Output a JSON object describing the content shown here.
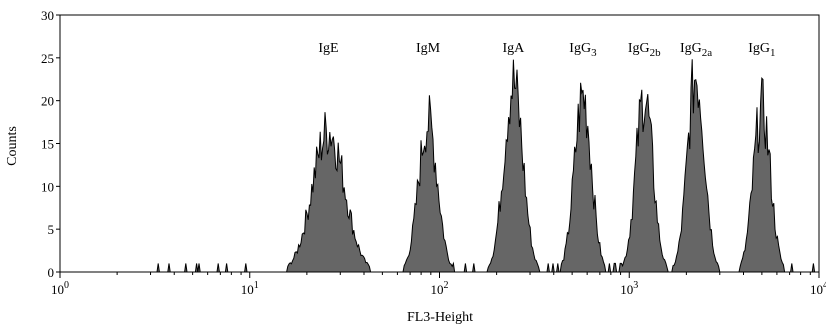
{
  "chart_data": {
    "type": "area",
    "title": "",
    "xlabel": "FL3-Height",
    "ylabel": "Counts",
    "x_scale": "log",
    "xlim": [
      1,
      10000
    ],
    "ylim": [
      0,
      30
    ],
    "x_ticks": [
      {
        "value": 1,
        "base": "10",
        "exp": "0"
      },
      {
        "value": 10,
        "base": "10",
        "exp": "1"
      },
      {
        "value": 100,
        "base": "10",
        "exp": "2"
      },
      {
        "value": 1000,
        "base": "10",
        "exp": "3"
      },
      {
        "value": 10000,
        "base": "10",
        "exp": "4"
      }
    ],
    "y_ticks": [
      0,
      5,
      10,
      15,
      20,
      25,
      30
    ],
    "grid": false,
    "fill_color": "#666666",
    "peaks": [
      {
        "label": {
          "main": "IgE",
          "sub": ""
        },
        "center": 26,
        "height": 16.5,
        "width": 0.085
      },
      {
        "label": {
          "main": "IgM",
          "sub": ""
        },
        "center": 87,
        "height": 17.5,
        "width": 0.05
      },
      {
        "label": {
          "main": "IgA",
          "sub": ""
        },
        "center": 245,
        "height": 22,
        "width": 0.05
      },
      {
        "label": {
          "main": "IgG",
          "sub": "3"
        },
        "center": 570,
        "height": 20.5,
        "width": 0.045
      },
      {
        "label": {
          "main": "IgG",
          "sub": "2b"
        },
        "center": 1200,
        "height": 20.5,
        "width": 0.045
      },
      {
        "label": {
          "main": "IgG",
          "sub": "2a"
        },
        "center": 2250,
        "height": 23,
        "width": 0.045
      },
      {
        "label": {
          "main": "IgG",
          "sub": "1"
        },
        "center": 5000,
        "height": 19,
        "width": 0.045
      }
    ]
  }
}
